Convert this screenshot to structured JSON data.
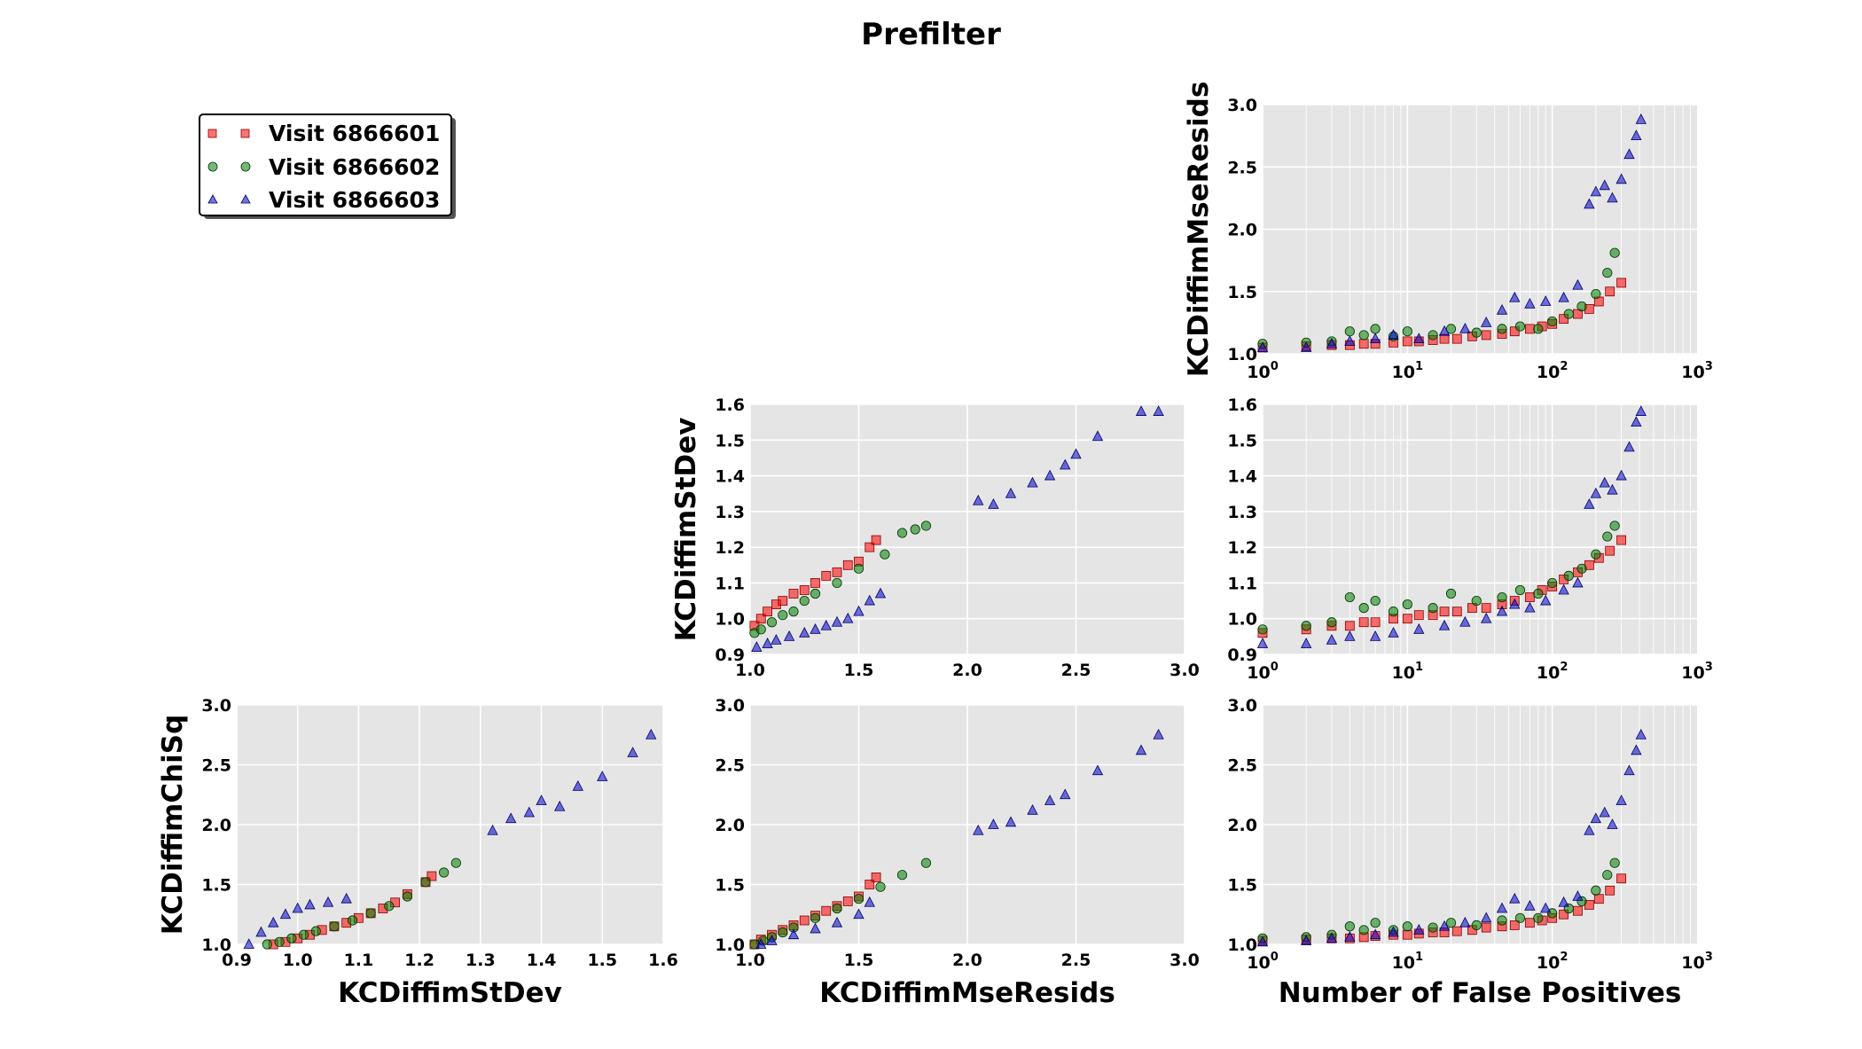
{
  "title": "Prefilter",
  "colors": {
    "panel_bg": "#e5e5e5",
    "grid": "#ffffff",
    "visit_6866601": "#ff0000",
    "visit_6866602": "#008000",
    "visit_6866603": "#0000cc"
  },
  "legend": {
    "placement": "top-left",
    "items": [
      {
        "label": "Visit 6866601",
        "marker": "square",
        "color": "#ff0000"
      },
      {
        "label": "Visit 6866602",
        "marker": "circle",
        "color": "#008000"
      },
      {
        "label": "Visit 6866603",
        "marker": "triangle",
        "color": "#0000cc"
      }
    ]
  },
  "chart_data": [
    {
      "id": "mse-vs-fp",
      "type": "scatter",
      "xlabel": "",
      "ylabel": "KCDiffimMseResids",
      "xscale": "log",
      "xlim": [
        1,
        1000
      ],
      "ylim": [
        1.0,
        3.0
      ],
      "xticks": [
        "10^0",
        "10^1",
        "10^2",
        "10^3"
      ],
      "yticks": [
        "1.0",
        "1.5",
        "2.0",
        "2.5",
        "3.0"
      ],
      "grid": true,
      "series": [
        {
          "name": "Visit 6866601",
          "x": [
            1,
            2,
            3,
            4,
            5,
            6,
            8,
            10,
            12,
            15,
            18,
            22,
            28,
            35,
            45,
            55,
            70,
            85,
            100,
            120,
            150,
            180,
            210,
            250,
            300
          ],
          "y": [
            1.05,
            1.06,
            1.07,
            1.07,
            1.08,
            1.08,
            1.09,
            1.1,
            1.1,
            1.11,
            1.12,
            1.12,
            1.14,
            1.15,
            1.16,
            1.18,
            1.2,
            1.22,
            1.24,
            1.28,
            1.32,
            1.36,
            1.42,
            1.5,
            1.57
          ]
        },
        {
          "name": "Visit 6866602",
          "x": [
            1,
            2,
            3,
            4,
            5,
            6,
            8,
            10,
            15,
            20,
            30,
            45,
            60,
            80,
            100,
            130,
            160,
            200,
            240,
            270
          ],
          "y": [
            1.08,
            1.09,
            1.1,
            1.18,
            1.15,
            1.2,
            1.14,
            1.18,
            1.15,
            1.2,
            1.17,
            1.2,
            1.22,
            1.2,
            1.26,
            1.32,
            1.38,
            1.48,
            1.65,
            1.81
          ]
        },
        {
          "name": "Visit 6866603",
          "x": [
            1,
            2,
            3,
            4,
            6,
            8,
            12,
            18,
            25,
            35,
            45,
            55,
            70,
            90,
            120,
            150,
            180,
            200,
            230,
            260,
            300,
            340,
            380,
            410
          ],
          "y": [
            1.05,
            1.05,
            1.08,
            1.1,
            1.12,
            1.15,
            1.12,
            1.18,
            1.2,
            1.25,
            1.35,
            1.45,
            1.4,
            1.42,
            1.45,
            1.55,
            2.2,
            2.3,
            2.35,
            2.25,
            2.4,
            2.6,
            2.75,
            2.88
          ]
        }
      ]
    },
    {
      "id": "stdev-vs-mse",
      "type": "scatter",
      "xlabel": "",
      "ylabel": "KCDiffimStDev",
      "xscale": "linear",
      "xlim": [
        1.0,
        3.0
      ],
      "ylim": [
        0.9,
        1.6
      ],
      "xticks": [
        "1.0",
        "1.5",
        "2.0",
        "2.5",
        "3.0"
      ],
      "yticks": [
        "0.9",
        "1.0",
        "1.1",
        "1.2",
        "1.3",
        "1.4",
        "1.5",
        "1.6"
      ],
      "grid": true,
      "series": [
        {
          "name": "Visit 6866601",
          "x": [
            1.02,
            1.05,
            1.08,
            1.12,
            1.15,
            1.2,
            1.25,
            1.3,
            1.35,
            1.4,
            1.45,
            1.5,
            1.55,
            1.58
          ],
          "y": [
            0.98,
            1.0,
            1.02,
            1.04,
            1.05,
            1.07,
            1.08,
            1.1,
            1.12,
            1.13,
            1.15,
            1.16,
            1.2,
            1.22
          ]
        },
        {
          "name": "Visit 6866602",
          "x": [
            1.02,
            1.05,
            1.1,
            1.15,
            1.2,
            1.25,
            1.3,
            1.4,
            1.5,
            1.62,
            1.7,
            1.76,
            1.81
          ],
          "y": [
            0.96,
            0.97,
            0.99,
            1.01,
            1.02,
            1.05,
            1.07,
            1.1,
            1.14,
            1.18,
            1.24,
            1.25,
            1.26
          ]
        },
        {
          "name": "Visit 6866603",
          "x": [
            1.03,
            1.08,
            1.12,
            1.18,
            1.25,
            1.3,
            1.35,
            1.4,
            1.45,
            1.5,
            1.55,
            1.6,
            2.05,
            2.12,
            2.2,
            2.3,
            2.38,
            2.45,
            2.5,
            2.6,
            2.8,
            2.88
          ],
          "y": [
            0.92,
            0.93,
            0.94,
            0.95,
            0.96,
            0.97,
            0.98,
            0.99,
            1.0,
            1.02,
            1.05,
            1.07,
            1.33,
            1.32,
            1.35,
            1.38,
            1.4,
            1.43,
            1.46,
            1.51,
            1.58,
            1.58
          ]
        }
      ]
    },
    {
      "id": "stdev-vs-fp",
      "type": "scatter",
      "xlabel": "",
      "ylabel": "",
      "xscale": "log",
      "xlim": [
        1,
        1000
      ],
      "ylim": [
        0.9,
        1.6
      ],
      "xticks": [
        "10^0",
        "10^1",
        "10^2",
        "10^3"
      ],
      "yticks": [
        "0.9",
        "1.0",
        "1.1",
        "1.2",
        "1.3",
        "1.4",
        "1.5",
        "1.6"
      ],
      "grid": true,
      "series": [
        {
          "name": "Visit 6866601",
          "x": [
            1,
            2,
            3,
            4,
            5,
            6,
            8,
            10,
            12,
            15,
            18,
            22,
            28,
            35,
            45,
            55,
            70,
            85,
            100,
            120,
            150,
            180,
            210,
            250,
            300
          ],
          "y": [
            0.96,
            0.97,
            0.98,
            0.98,
            0.99,
            0.99,
            1.0,
            1.0,
            1.01,
            1.01,
            1.02,
            1.02,
            1.03,
            1.03,
            1.04,
            1.05,
            1.06,
            1.08,
            1.09,
            1.11,
            1.13,
            1.15,
            1.17,
            1.19,
            1.22
          ]
        },
        {
          "name": "Visit 6866602",
          "x": [
            1,
            2,
            3,
            4,
            5,
            6,
            8,
            10,
            15,
            20,
            30,
            45,
            60,
            80,
            100,
            130,
            160,
            200,
            240,
            270
          ],
          "y": [
            0.97,
            0.98,
            0.99,
            1.06,
            1.03,
            1.05,
            1.02,
            1.04,
            1.03,
            1.07,
            1.05,
            1.06,
            1.08,
            1.07,
            1.1,
            1.12,
            1.14,
            1.18,
            1.23,
            1.26
          ]
        },
        {
          "name": "Visit 6866603",
          "x": [
            1,
            2,
            3,
            4,
            6,
            8,
            12,
            18,
            25,
            35,
            45,
            55,
            70,
            90,
            120,
            150,
            180,
            200,
            230,
            260,
            300,
            340,
            380,
            410
          ],
          "y": [
            0.93,
            0.93,
            0.94,
            0.95,
            0.95,
            0.96,
            0.97,
            0.98,
            0.99,
            1.0,
            1.02,
            1.04,
            1.03,
            1.05,
            1.08,
            1.1,
            1.32,
            1.35,
            1.38,
            1.36,
            1.4,
            1.48,
            1.55,
            1.58
          ]
        }
      ]
    },
    {
      "id": "chisq-vs-stdev",
      "type": "scatter",
      "xlabel": "KCDiffimStDev",
      "ylabel": "KCDiffimChiSq",
      "xscale": "linear",
      "xlim": [
        0.9,
        1.6
      ],
      "ylim": [
        1.0,
        3.0
      ],
      "xticks": [
        "0.9",
        "1.0",
        "1.1",
        "1.2",
        "1.3",
        "1.4",
        "1.5",
        "1.6"
      ],
      "yticks": [
        "1.0",
        "1.5",
        "2.0",
        "2.5",
        "3.0"
      ],
      "grid": true,
      "series": [
        {
          "name": "Visit 6866601",
          "x": [
            0.96,
            0.98,
            1.0,
            1.02,
            1.04,
            1.06,
            1.08,
            1.1,
            1.12,
            1.14,
            1.16,
            1.18,
            1.21,
            1.22
          ],
          "y": [
            1.0,
            1.02,
            1.05,
            1.08,
            1.12,
            1.15,
            1.18,
            1.22,
            1.26,
            1.3,
            1.35,
            1.42,
            1.52,
            1.57
          ]
        },
        {
          "name": "Visit 6866602",
          "x": [
            0.95,
            0.97,
            0.99,
            1.01,
            1.03,
            1.06,
            1.09,
            1.12,
            1.15,
            1.18,
            1.21,
            1.24,
            1.26
          ],
          "y": [
            1.0,
            1.02,
            1.05,
            1.08,
            1.11,
            1.15,
            1.2,
            1.26,
            1.32,
            1.4,
            1.52,
            1.6,
            1.68
          ]
        },
        {
          "name": "Visit 6866603",
          "x": [
            0.92,
            0.94,
            0.96,
            0.98,
            1.0,
            1.02,
            1.05,
            1.08,
            1.32,
            1.35,
            1.38,
            1.4,
            1.43,
            1.46,
            1.5,
            1.55,
            1.58
          ],
          "y": [
            1.0,
            1.1,
            1.18,
            1.25,
            1.3,
            1.33,
            1.35,
            1.38,
            1.95,
            2.05,
            2.1,
            2.2,
            2.15,
            2.32,
            2.4,
            2.6,
            2.75
          ]
        }
      ]
    },
    {
      "id": "chisq-vs-mse",
      "type": "scatter",
      "xlabel": "KCDiffimMseResids",
      "ylabel": "",
      "xscale": "linear",
      "xlim": [
        1.0,
        3.0
      ],
      "ylim": [
        1.0,
        3.0
      ],
      "xticks": [
        "1.0",
        "1.5",
        "2.0",
        "2.5",
        "3.0"
      ],
      "yticks": [
        "1.0",
        "1.5",
        "2.0",
        "2.5",
        "3.0"
      ],
      "grid": true,
      "series": [
        {
          "name": "Visit 6866601",
          "x": [
            1.02,
            1.05,
            1.1,
            1.15,
            1.2,
            1.25,
            1.3,
            1.35,
            1.4,
            1.45,
            1.5,
            1.55,
            1.58
          ],
          "y": [
            1.0,
            1.04,
            1.08,
            1.12,
            1.16,
            1.2,
            1.24,
            1.28,
            1.32,
            1.36,
            1.4,
            1.5,
            1.56
          ]
        },
        {
          "name": "Visit 6866602",
          "x": [
            1.02,
            1.06,
            1.1,
            1.15,
            1.2,
            1.3,
            1.4,
            1.5,
            1.6,
            1.7,
            1.81
          ],
          "y": [
            1.0,
            1.03,
            1.06,
            1.1,
            1.14,
            1.22,
            1.3,
            1.38,
            1.48,
            1.58,
            1.68
          ]
        },
        {
          "name": "Visit 6866603",
          "x": [
            1.05,
            1.1,
            1.2,
            1.3,
            1.4,
            1.5,
            1.55,
            2.05,
            2.12,
            2.2,
            2.3,
            2.38,
            2.45,
            2.6,
            2.8,
            2.88
          ],
          "y": [
            1.0,
            1.03,
            1.08,
            1.13,
            1.18,
            1.25,
            1.35,
            1.95,
            2.0,
            2.02,
            2.12,
            2.2,
            2.25,
            2.45,
            2.62,
            2.75
          ]
        }
      ]
    },
    {
      "id": "chisq-vs-fp",
      "type": "scatter",
      "xlabel": "Number of False Positives",
      "ylabel": "",
      "xscale": "log",
      "xlim": [
        1,
        1000
      ],
      "ylim": [
        1.0,
        3.0
      ],
      "xticks": [
        "10^0",
        "10^1",
        "10^2",
        "10^3"
      ],
      "yticks": [
        "1.0",
        "1.5",
        "2.0",
        "2.5",
        "3.0"
      ],
      "grid": true,
      "series": [
        {
          "name": "Visit 6866601",
          "x": [
            1,
            2,
            3,
            4,
            5,
            6,
            8,
            10,
            12,
            15,
            18,
            22,
            28,
            35,
            45,
            55,
            70,
            85,
            100,
            120,
            150,
            180,
            210,
            250,
            300
          ],
          "y": [
            1.03,
            1.04,
            1.05,
            1.05,
            1.06,
            1.07,
            1.08,
            1.08,
            1.09,
            1.1,
            1.1,
            1.11,
            1.12,
            1.14,
            1.15,
            1.16,
            1.18,
            1.2,
            1.22,
            1.25,
            1.28,
            1.33,
            1.38,
            1.45,
            1.55
          ]
        },
        {
          "name": "Visit 6866602",
          "x": [
            1,
            2,
            3,
            4,
            5,
            6,
            8,
            10,
            15,
            20,
            30,
            45,
            60,
            80,
            100,
            130,
            160,
            200,
            240,
            270
          ],
          "y": [
            1.05,
            1.06,
            1.08,
            1.15,
            1.12,
            1.18,
            1.12,
            1.15,
            1.14,
            1.18,
            1.16,
            1.2,
            1.22,
            1.22,
            1.26,
            1.3,
            1.36,
            1.45,
            1.58,
            1.68
          ]
        },
        {
          "name": "Visit 6866603",
          "x": [
            1,
            2,
            3,
            4,
            6,
            8,
            12,
            18,
            25,
            35,
            45,
            55,
            70,
            90,
            120,
            150,
            180,
            200,
            230,
            260,
            300,
            340,
            380,
            410
          ],
          "y": [
            1.02,
            1.03,
            1.05,
            1.06,
            1.08,
            1.1,
            1.12,
            1.15,
            1.18,
            1.22,
            1.3,
            1.38,
            1.32,
            1.3,
            1.35,
            1.4,
            1.95,
            2.05,
            2.1,
            2.0,
            2.2,
            2.45,
            2.62,
            2.75
          ]
        }
      ]
    }
  ]
}
